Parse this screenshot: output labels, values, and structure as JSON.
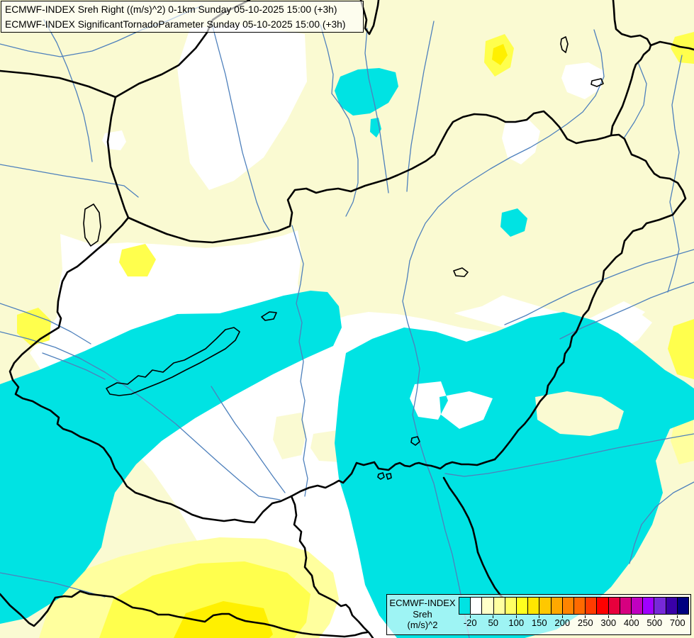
{
  "header": {
    "line1": "ECMWF-INDEX Sreh Right ((m/s)^2) 0-1km Sunday 05-10-2025 15:00 (+3h)",
    "line2": "ECMWF-INDEX SignificantTornadoParameter Sunday 05-10-2025 15:00 (+3h)"
  },
  "legend": {
    "title_line1": "ECMWF-INDEX",
    "title_line2": "Sreh",
    "title_line3": "(m/s)^2",
    "swatches": [
      "#00E3E3",
      "#FFFFFF",
      "#FFFFC8",
      "#FFFFA0",
      "#FFFF64",
      "#FFFF1E",
      "#FFE600",
      "#FFC800",
      "#FFA800",
      "#FF8400",
      "#FF6A00",
      "#FF3C00",
      "#FF0000",
      "#E8003C",
      "#D60080",
      "#C000C0",
      "#A000FF",
      "#7729D8",
      "#3A00A8",
      "#000080"
    ],
    "ticks": [
      "-20",
      "50",
      "100",
      "150",
      "200",
      "250",
      "300",
      "400",
      "500",
      "700"
    ]
  },
  "map": {
    "palette": {
      "base_pale_yellow": "#FAFAD2",
      "white": "#FFFFFF",
      "light_yellow": "#FFFF9E",
      "bright_yellow": "#FFFF4D",
      "deep_yellow": "#FFF000",
      "cyan": "#00E3E3",
      "river_blue": "#4E80BC",
      "border_black": "#000000"
    }
  }
}
